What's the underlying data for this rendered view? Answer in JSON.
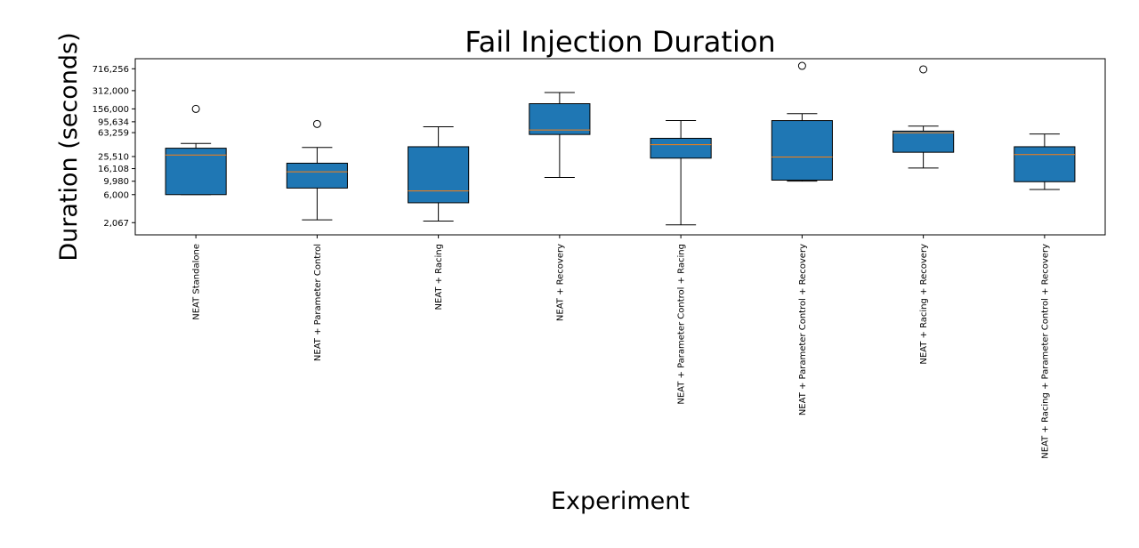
{
  "chart_data": {
    "type": "box",
    "title": "Fail Injection Duration",
    "xlabel": "Experiment",
    "ylabel": "Duration (seconds)",
    "yscale": "log",
    "ylim": [
      1300,
      1050000
    ],
    "yticks": [
      2067,
      6000,
      9980,
      16108,
      25510,
      63259,
      95634,
      156000,
      312000,
      716256
    ],
    "ytick_labels": [
      "2,067",
      "6,000",
      "9,980",
      "16,108",
      "25,510",
      "63,259",
      "95,634",
      "156,000",
      "312,000",
      "716,256"
    ],
    "grid": false,
    "colors": {
      "box_fill": "#1f77b4",
      "median": "#ff7f0e",
      "line": "#000000"
    },
    "categories": [
      "NEAT Standalone",
      "NEAT + Parameter Control",
      "NEAT + Racing",
      "NEAT + Recovery",
      "NEAT + Parameter Control + Racing",
      "NEAT + Parameter Control + Recovery",
      "NEAT + Racing + Recovery",
      "NEAT + Racing + Parameter Control + Recovery"
    ],
    "boxes": [
      {
        "whislo": 6000,
        "q1": 6000,
        "med": 27000,
        "q3": 35000,
        "whishi": 42000,
        "fliers": [
          156000
        ]
      },
      {
        "whislo": 2300,
        "q1": 7700,
        "med": 14300,
        "q3": 19800,
        "whishi": 36000,
        "fliers": [
          88000
        ]
      },
      {
        "whislo": 2200,
        "q1": 4400,
        "med": 6900,
        "q3": 37000,
        "whishi": 79000,
        "fliers": []
      },
      {
        "whislo": 11500,
        "q1": 59000,
        "med": 70000,
        "q3": 190000,
        "whishi": 290000,
        "fliers": []
      },
      {
        "whislo": 1900,
        "q1": 24000,
        "med": 40000,
        "q3": 51000,
        "whishi": 100000,
        "fliers": []
      },
      {
        "whislo": 10000,
        "q1": 10400,
        "med": 25000,
        "q3": 100000,
        "whishi": 130000,
        "fliers": [
          800000
        ]
      },
      {
        "whislo": 16500,
        "q1": 30000,
        "med": 63000,
        "q3": 67000,
        "whishi": 81000,
        "fliers": [
          700000
        ]
      },
      {
        "whislo": 7300,
        "q1": 9800,
        "med": 27500,
        "q3": 37000,
        "whishi": 60000,
        "fliers": []
      }
    ]
  }
}
